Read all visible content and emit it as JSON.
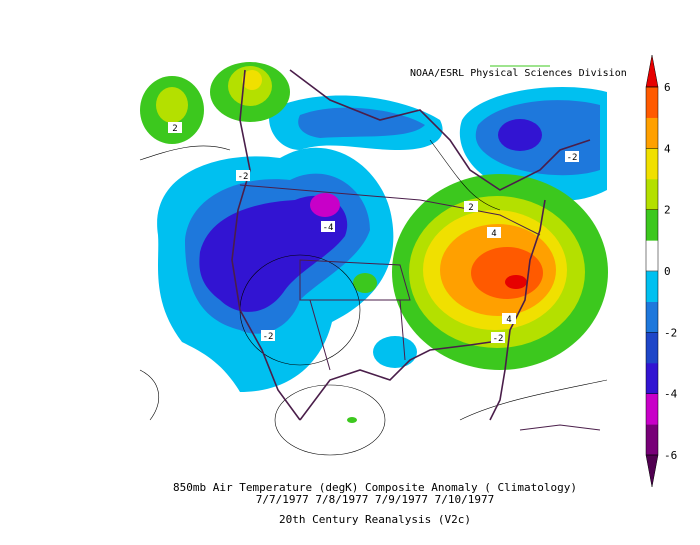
{
  "credit": "NOAA/ESRL Physical Sciences Division",
  "caption": {
    "line1": "850mb Air Temperature (degK) Composite Anomaly ( Climatology)",
    "line2": "7/7/1977 7/8/1977 7/9/1977 7/10/1977",
    "line3": "20th Century Reanalysis (V2c)"
  },
  "colorbar": {
    "range": [
      -6,
      6
    ],
    "ticks": [
      -6,
      -4,
      -2,
      0,
      2,
      4,
      6
    ],
    "colors": [
      "#500050",
      "#780078",
      "#c800c8",
      "#3214d2",
      "#1e46c8",
      "#1e78dc",
      "#00c0f0",
      "#ffffff",
      "#3cc81e",
      "#b4e000",
      "#f0e000",
      "#ffa000",
      "#ff5a00",
      "#e60000"
    ]
  },
  "contour_labels": [
    "2",
    "-2",
    "-4",
    "2",
    "4",
    "4",
    "-2",
    "-2",
    "-2"
  ]
}
